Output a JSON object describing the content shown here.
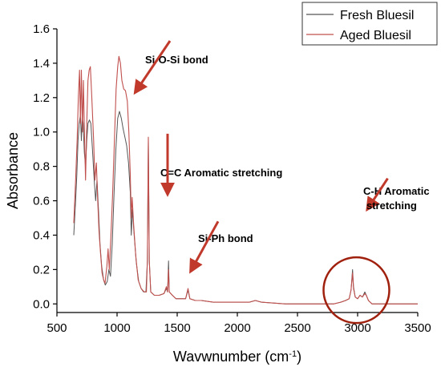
{
  "chart_data": {
    "type": "line",
    "xlabel": "Wavwnumber (cm",
    "xlabel_sup": "-1",
    "xlabel_end": ")",
    "ylabel": "Absorbance",
    "xlim": [
      500,
      3500
    ],
    "ylim": [
      -0.05,
      1.6
    ],
    "xticks": [
      500,
      1000,
      1500,
      2000,
      2500,
      3000,
      3500
    ],
    "yticks": [
      0.0,
      0.2,
      0.4,
      0.6,
      0.8,
      1.0,
      1.2,
      1.4,
      1.6
    ],
    "grid": false,
    "legend_position": "top-right",
    "series": [
      {
        "name": "Fresh Bluesil",
        "color": "#555555",
        "points": [
          [
            640,
            0.4
          ],
          [
            655,
            0.6
          ],
          [
            665,
            0.75
          ],
          [
            675,
            0.95
          ],
          [
            685,
            1.05
          ],
          [
            695,
            1.1
          ],
          [
            703,
            0.95
          ],
          [
            710,
            1.09
          ],
          [
            718,
            1.05
          ],
          [
            728,
            0.88
          ],
          [
            738,
            0.8
          ],
          [
            748,
            0.95
          ],
          [
            758,
            1.05
          ],
          [
            770,
            1.07
          ],
          [
            782,
            1.05
          ],
          [
            795,
            0.9
          ],
          [
            810,
            0.72
          ],
          [
            822,
            0.6
          ],
          [
            833,
            0.72
          ],
          [
            845,
            0.55
          ],
          [
            858,
            0.35
          ],
          [
            872,
            0.22
          ],
          [
            888,
            0.14
          ],
          [
            902,
            0.11
          ],
          [
            918,
            0.13
          ],
          [
            932,
            0.2
          ],
          [
            945,
            0.16
          ],
          [
            960,
            0.35
          ],
          [
            975,
            0.65
          ],
          [
            990,
            0.9
          ],
          [
            1005,
            1.08
          ],
          [
            1020,
            1.12
          ],
          [
            1035,
            1.08
          ],
          [
            1050,
            1.02
          ],
          [
            1065,
            0.97
          ],
          [
            1080,
            0.92
          ],
          [
            1095,
            0.82
          ],
          [
            1110,
            0.65
          ],
          [
            1118,
            0.4
          ],
          [
            1128,
            0.55
          ],
          [
            1140,
            0.42
          ],
          [
            1160,
            0.24
          ],
          [
            1180,
            0.13
          ],
          [
            1200,
            0.09
          ],
          [
            1220,
            0.07
          ],
          [
            1240,
            0.07
          ],
          [
            1252,
            0.25
          ],
          [
            1260,
            0.95
          ],
          [
            1268,
            0.25
          ],
          [
            1280,
            0.07
          ],
          [
            1310,
            0.05
          ],
          [
            1350,
            0.05
          ],
          [
            1390,
            0.06
          ],
          [
            1410,
            0.09
          ],
          [
            1420,
            0.07
          ],
          [
            1428,
            0.25
          ],
          [
            1434,
            0.07
          ],
          [
            1460,
            0.05
          ],
          [
            1490,
            0.03
          ],
          [
            1530,
            0.03
          ],
          [
            1570,
            0.03
          ],
          [
            1590,
            0.08
          ],
          [
            1605,
            0.03
          ],
          [
            1650,
            0.02
          ],
          [
            1700,
            0.02
          ],
          [
            1800,
            0.01
          ],
          [
            1900,
            0.01
          ],
          [
            2000,
            0.01
          ],
          [
            2100,
            0.01
          ],
          [
            2150,
            0.02
          ],
          [
            2200,
            0.01
          ],
          [
            2400,
            0.0
          ],
          [
            2600,
            0.0
          ],
          [
            2800,
            0.0
          ],
          [
            2860,
            0.01
          ],
          [
            2900,
            0.02
          ],
          [
            2930,
            0.03
          ],
          [
            2945,
            0.08
          ],
          [
            2958,
            0.2
          ],
          [
            2966,
            0.1
          ],
          [
            2980,
            0.04
          ],
          [
            3000,
            0.03
          ],
          [
            3020,
            0.05
          ],
          [
            3040,
            0.04
          ],
          [
            3060,
            0.07
          ],
          [
            3072,
            0.05
          ],
          [
            3090,
            0.02
          ],
          [
            3120,
            0.0
          ],
          [
            3200,
            0.0
          ],
          [
            3350,
            0.0
          ],
          [
            3500,
            0.0
          ]
        ]
      },
      {
        "name": "Aged Bluesil",
        "color": "#c0504d",
        "points": [
          [
            640,
            0.47
          ],
          [
            655,
            0.72
          ],
          [
            668,
            0.95
          ],
          [
            678,
            1.2
          ],
          [
            688,
            1.36
          ],
          [
            695,
            1.05
          ],
          [
            703,
            1.36
          ],
          [
            712,
            1.0
          ],
          [
            720,
            1.3
          ],
          [
            730,
            0.96
          ],
          [
            738,
            0.72
          ],
          [
            748,
            1.05
          ],
          [
            758,
            1.3
          ],
          [
            768,
            1.36
          ],
          [
            778,
            1.38
          ],
          [
            790,
            1.2
          ],
          [
            805,
            0.95
          ],
          [
            815,
            0.72
          ],
          [
            828,
            0.82
          ],
          [
            838,
            0.62
          ],
          [
            850,
            0.42
          ],
          [
            862,
            0.3
          ],
          [
            875,
            0.18
          ],
          [
            888,
            0.14
          ],
          [
            900,
            0.12
          ],
          [
            915,
            0.22
          ],
          [
            925,
            0.32
          ],
          [
            935,
            0.2
          ],
          [
            948,
            0.38
          ],
          [
            962,
            0.62
          ],
          [
            978,
            0.95
          ],
          [
            992,
            1.25
          ],
          [
            1005,
            1.38
          ],
          [
            1015,
            1.44
          ],
          [
            1028,
            1.4
          ],
          [
            1040,
            1.3
          ],
          [
            1055,
            1.25
          ],
          [
            1070,
            1.24
          ],
          [
            1085,
            1.18
          ],
          [
            1098,
            1.0
          ],
          [
            1110,
            0.75
          ],
          [
            1118,
            0.5
          ],
          [
            1125,
            0.62
          ],
          [
            1138,
            0.46
          ],
          [
            1155,
            0.28
          ],
          [
            1175,
            0.14
          ],
          [
            1200,
            0.09
          ],
          [
            1225,
            0.07
          ],
          [
            1244,
            0.07
          ],
          [
            1252,
            0.25
          ],
          [
            1260,
            0.97
          ],
          [
            1268,
            0.25
          ],
          [
            1280,
            0.07
          ],
          [
            1310,
            0.05
          ],
          [
            1350,
            0.05
          ],
          [
            1390,
            0.06
          ],
          [
            1410,
            0.1
          ],
          [
            1420,
            0.07
          ],
          [
            1428,
            0.2
          ],
          [
            1434,
            0.07
          ],
          [
            1460,
            0.05
          ],
          [
            1490,
            0.03
          ],
          [
            1530,
            0.03
          ],
          [
            1570,
            0.03
          ],
          [
            1590,
            0.09
          ],
          [
            1605,
            0.03
          ],
          [
            1650,
            0.02
          ],
          [
            1700,
            0.02
          ],
          [
            1800,
            0.01
          ],
          [
            1900,
            0.01
          ],
          [
            2000,
            0.01
          ],
          [
            2100,
            0.01
          ],
          [
            2150,
            0.02
          ],
          [
            2200,
            0.01
          ],
          [
            2400,
            0.0
          ],
          [
            2600,
            0.0
          ],
          [
            2800,
            0.0
          ],
          [
            2860,
            0.01
          ],
          [
            2900,
            0.02
          ],
          [
            2930,
            0.03
          ],
          [
            2945,
            0.08
          ],
          [
            2958,
            0.18
          ],
          [
            2966,
            0.09
          ],
          [
            2980,
            0.04
          ],
          [
            3000,
            0.03
          ],
          [
            3020,
            0.05
          ],
          [
            3040,
            0.04
          ],
          [
            3060,
            0.06
          ],
          [
            3072,
            0.05
          ],
          [
            3090,
            0.02
          ],
          [
            3120,
            0.0
          ],
          [
            3200,
            0.0
          ],
          [
            3350,
            0.0
          ],
          [
            3500,
            0.0
          ]
        ]
      }
    ],
    "annotations": [
      {
        "text": "Si-O-Si bond",
        "arrow_from": [
          1440,
          1.53
        ],
        "arrow_to": [
          1160,
          1.24
        ]
      },
      {
        "text": "C=C Aromatic stretching",
        "arrow_from": [
          1420,
          0.99
        ],
        "arrow_to": [
          1420,
          0.65
        ]
      },
      {
        "text": "Si-Ph bond",
        "arrow_from": [
          1840,
          0.48
        ],
        "arrow_to": [
          1620,
          0.2
        ]
      },
      {
        "text": "C-H Aromatic",
        "arrow_from": [
          3250,
          0.73
        ],
        "arrow_to": [
          3090,
          0.56
        ]
      },
      {
        "text": "stretching"
      }
    ],
    "highlight_circle": {
      "x": 2990,
      "y": 0.08,
      "color": "#a0200e"
    }
  }
}
